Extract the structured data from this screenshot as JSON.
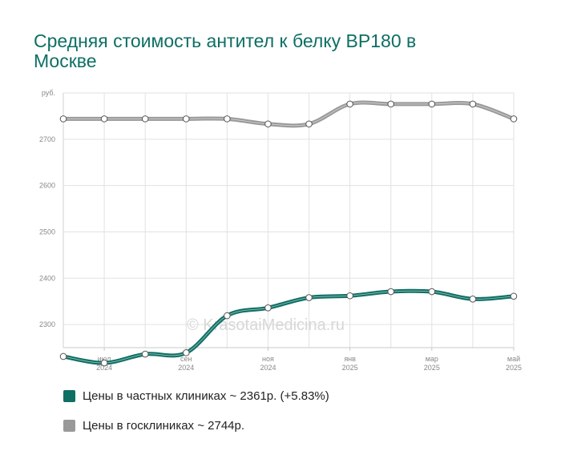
{
  "title": "Средняя стоимость антител к белку BP180 в Москве",
  "watermark": "© KrasotaiMedicina.ru",
  "chart_data": {
    "type": "line",
    "title": "Средняя стоимость антител к белку BP180 в Москве",
    "y_unit": "руб.",
    "ylim": [
      2250,
      2800
    ],
    "y_ticks": [
      2300,
      2400,
      2500,
      2600,
      2700
    ],
    "x_tick_labels": [
      {
        "index": 1,
        "month": "июл",
        "year": "2024"
      },
      {
        "index": 3,
        "month": "сен",
        "year": "2024"
      },
      {
        "index": 5,
        "month": "ноя",
        "year": "2024"
      },
      {
        "index": 7,
        "month": "янв",
        "year": "2025"
      },
      {
        "index": 9,
        "month": "мар",
        "year": "2025"
      },
      {
        "index": 11,
        "month": "май",
        "year": "2025"
      }
    ],
    "grid": true,
    "legend_position": "bottom",
    "series": [
      {
        "name": "Цены в частных клиниках ~ 2361р. (+5.83%)",
        "color": "#0e6f64",
        "values": [
          2231,
          2217,
          2236,
          2239,
          2319,
          2336,
          2358,
          2362,
          2371,
          2371,
          2355,
          2361
        ]
      },
      {
        "name": "Цены в госклиниках ~ 2744р.",
        "color": "#999999",
        "values": [
          2744,
          2744,
          2744,
          2744,
          2744,
          2733,
          2733,
          2776,
          2776,
          2776,
          2776,
          2744
        ]
      }
    ]
  }
}
